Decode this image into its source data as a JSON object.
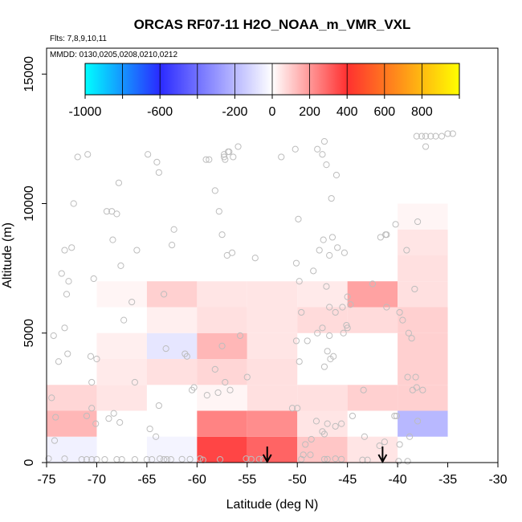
{
  "chart_data": {
    "type": "heatmap",
    "title": "ORCAS RF07-11 H2O_NOAA_m_VMR_VXL",
    "annotations": {
      "flights": "Flts: 7,8,9,10,11",
      "dates": "MMDD: 0130,0205,0208,0210,0212"
    },
    "xlabel": "Latitude (deg N)",
    "ylabel": "Altitude (m)",
    "xlim": [
      -75,
      -30
    ],
    "ylim": [
      0,
      16000
    ],
    "xticks": [
      -75,
      -70,
      -65,
      -60,
      -55,
      -50,
      -45,
      -40,
      -35,
      -30
    ],
    "yticks": [
      0,
      5000,
      10000,
      15000
    ],
    "colorbar": {
      "range": [
        -1000,
        1000
      ],
      "ticks": [
        -1000,
        -600,
        -200,
        0,
        200,
        400,
        600,
        800
      ],
      "colors": [
        "#00ffff",
        "#2a2aff",
        "#ffffff",
        "#ff3030",
        "#ffff00"
      ]
    },
    "cells": [
      {
        "x0": -75,
        "x1": -70,
        "y0": 0,
        "y1": 1000,
        "value": -40
      },
      {
        "x0": -75,
        "x1": -70,
        "y0": 1000,
        "y1": 2000,
        "value": 140
      },
      {
        "x0": -75,
        "x1": -70,
        "y0": 2000,
        "y1": 3000,
        "value": 80
      },
      {
        "x0": -70,
        "x1": -65,
        "y0": 2000,
        "y1": 3000,
        "value": 50
      },
      {
        "x0": -70,
        "x1": -65,
        "y0": 3000,
        "y1": 4000,
        "value": 40
      },
      {
        "x0": -70,
        "x1": -65,
        "y0": 4000,
        "y1": 5000,
        "value": 30
      },
      {
        "x0": -70,
        "x1": -65,
        "y0": 6000,
        "y1": 7000,
        "value": 20
      },
      {
        "x0": -65,
        "x1": -60,
        "y0": 0,
        "y1": 1000,
        "value": -30
      },
      {
        "x0": -65,
        "x1": -60,
        "y0": 3000,
        "y1": 4000,
        "value": 60
      },
      {
        "x0": -65,
        "x1": -60,
        "y0": 4000,
        "y1": 5000,
        "value": -70
      },
      {
        "x0": -65,
        "x1": -60,
        "y0": 5000,
        "y1": 6000,
        "value": 30
      },
      {
        "x0": -65,
        "x1": -60,
        "y0": 6000,
        "y1": 7000,
        "value": 90
      },
      {
        "x0": -60,
        "x1": -55,
        "y0": 0,
        "y1": 1000,
        "value": 360
      },
      {
        "x0": -60,
        "x1": -55,
        "y0": 1000,
        "y1": 2000,
        "value": 240
      },
      {
        "x0": -60,
        "x1": -55,
        "y0": 2000,
        "y1": 3000,
        "value": 20
      },
      {
        "x0": -60,
        "x1": -55,
        "y0": 3000,
        "y1": 4000,
        "value": 80
      },
      {
        "x0": -60,
        "x1": -55,
        "y0": 4000,
        "y1": 5000,
        "value": 140
      },
      {
        "x0": -60,
        "x1": -55,
        "y0": 5000,
        "y1": 6000,
        "value": 60
      },
      {
        "x0": -60,
        "x1": -55,
        "y0": 6000,
        "y1": 7000,
        "value": 50
      },
      {
        "x0": -55,
        "x1": -50,
        "y0": 0,
        "y1": 1000,
        "value": 300
      },
      {
        "x0": -55,
        "x1": -50,
        "y0": 1000,
        "y1": 2000,
        "value": 220
      },
      {
        "x0": -55,
        "x1": -50,
        "y0": 2000,
        "y1": 3000,
        "value": 60
      },
      {
        "x0": -55,
        "x1": -50,
        "y0": 3000,
        "y1": 4000,
        "value": 60
      },
      {
        "x0": -55,
        "x1": -50,
        "y0": 4000,
        "y1": 5000,
        "value": 50
      },
      {
        "x0": -55,
        "x1": -50,
        "y0": 5000,
        "y1": 6000,
        "value": 50
      },
      {
        "x0": -55,
        "x1": -50,
        "y0": 6000,
        "y1": 7000,
        "value": 50
      },
      {
        "x0": -50,
        "x1": -45,
        "y0": 0,
        "y1": 1000,
        "value": 110
      },
      {
        "x0": -50,
        "x1": -45,
        "y0": 1000,
        "y1": 2000,
        "value": 50
      },
      {
        "x0": -50,
        "x1": -45,
        "y0": 2000,
        "y1": 3000,
        "value": 60
      },
      {
        "x0": -50,
        "x1": -45,
        "y0": 5000,
        "y1": 6000,
        "value": 70
      },
      {
        "x0": -50,
        "x1": -45,
        "y0": 6000,
        "y1": 7000,
        "value": 40
      },
      {
        "x0": -45,
        "x1": -40,
        "y0": 0,
        "y1": 1000,
        "value": 50
      },
      {
        "x0": -45,
        "x1": -40,
        "y0": 2000,
        "y1": 3000,
        "value": 90
      },
      {
        "x0": -45,
        "x1": -40,
        "y0": 5000,
        "y1": 6000,
        "value": 70
      },
      {
        "x0": -45,
        "x1": -40,
        "y0": 6000,
        "y1": 7000,
        "value": 180
      },
      {
        "x0": -40,
        "x1": -35,
        "y0": 1000,
        "y1": 2000,
        "value": -200
      },
      {
        "x0": -40,
        "x1": -35,
        "y0": 2000,
        "y1": 3000,
        "value": 90
      },
      {
        "x0": -40,
        "x1": -35,
        "y0": 3000,
        "y1": 4000,
        "value": 90
      },
      {
        "x0": -40,
        "x1": -35,
        "y0": 4000,
        "y1": 5000,
        "value": 90
      },
      {
        "x0": -40,
        "x1": -35,
        "y0": 5000,
        "y1": 6000,
        "value": 90
      },
      {
        "x0": -40,
        "x1": -35,
        "y0": 6000,
        "y1": 7000,
        "value": 60
      },
      {
        "x0": -40,
        "x1": -35,
        "y0": 7000,
        "y1": 8000,
        "value": 60
      },
      {
        "x0": -40,
        "x1": -35,
        "y0": 8000,
        "y1": 9000,
        "value": 50
      },
      {
        "x0": -40,
        "x1": -35,
        "y0": 9000,
        "y1": 10000,
        "value": 20
      }
    ],
    "arrows": [
      {
        "x": -53
      },
      {
        "x": -41.5
      }
    ],
    "points": [
      [
        -74.5,
        2500
      ],
      [
        -74.1,
        1750
      ],
      [
        -74.2,
        850
      ],
      [
        -74.8,
        150
      ],
      [
        -73.2,
        150
      ],
      [
        -71.5,
        120
      ],
      [
        -71.0,
        120
      ],
      [
        -70.5,
        120
      ],
      [
        -70.0,
        120
      ],
      [
        -69.2,
        120
      ],
      [
        -68.0,
        120
      ],
      [
        -67.5,
        120
      ],
      [
        -66.2,
        120
      ],
      [
        -65.0,
        120
      ],
      [
        -64.5,
        120
      ],
      [
        -63.3,
        120
      ],
      [
        -63.0,
        120
      ],
      [
        -62.6,
        120
      ],
      [
        -61.5,
        130
      ],
      [
        -60.7,
        130
      ],
      [
        -74.3,
        4900
      ],
      [
        -73.8,
        3900
      ],
      [
        -73.5,
        7300
      ],
      [
        -73.2,
        8200
      ],
      [
        -72.5,
        8300
      ],
      [
        -71.9,
        11800
      ],
      [
        -70.9,
        11900
      ],
      [
        -72.8,
        7000
      ],
      [
        -73.0,
        6500
      ],
      [
        -73.2,
        5200
      ],
      [
        -72.9,
        4200
      ],
      [
        -72.3,
        10000
      ],
      [
        -70.3,
        7100
      ],
      [
        -70.6,
        4100
      ],
      [
        -70.0,
        4000
      ],
      [
        -70.5,
        3100
      ],
      [
        -70.5,
        2100
      ],
      [
        -71.0,
        1800
      ],
      [
        -70.1,
        1500
      ],
      [
        -68.8,
        1700
      ],
      [
        -68.3,
        1900
      ],
      [
        -67.7,
        1550
      ],
      [
        -69.0,
        9700
      ],
      [
        -68.5,
        9700
      ],
      [
        -68.0,
        9600
      ],
      [
        -67.8,
        10800
      ],
      [
        -67.6,
        7600
      ],
      [
        -68.4,
        8600
      ],
      [
        -67.3,
        5500
      ],
      [
        -66.2,
        3100
      ],
      [
        -66.5,
        6200
      ],
      [
        -66.0,
        8200
      ],
      [
        -64.9,
        11900
      ],
      [
        -63.8,
        11200
      ],
      [
        -64.0,
        11600
      ],
      [
        -62.3,
        9000
      ],
      [
        -62.5,
        8400
      ],
      [
        -63.3,
        6500
      ],
      [
        -63.1,
        4400
      ],
      [
        -63.8,
        2200
      ],
      [
        -64.1,
        1000
      ],
      [
        -64.7,
        1300
      ],
      [
        -63.7,
        150
      ],
      [
        -61.2,
        4200
      ],
      [
        -61.0,
        4100
      ],
      [
        -60.5,
        2800
      ],
      [
        -60.3,
        2900
      ],
      [
        -59.1,
        11700
      ],
      [
        -58.8,
        11700
      ],
      [
        -57.2,
        11700
      ],
      [
        -58.2,
        10500
      ],
      [
        -57.8,
        9700
      ],
      [
        -57.5,
        8800
      ],
      [
        -57.0,
        8000
      ],
      [
        -56.5,
        8100
      ],
      [
        -57.3,
        11900
      ],
      [
        -56.8,
        12000
      ],
      [
        -55.9,
        12200
      ],
      [
        -56.9,
        12000
      ],
      [
        -57.3,
        11800
      ],
      [
        -56.4,
        11800
      ],
      [
        -54.2,
        7900
      ],
      [
        -55.7,
        4900
      ],
      [
        -57.5,
        4500
      ],
      [
        -58.2,
        3600
      ],
      [
        -57.2,
        3100
      ],
      [
        -55.0,
        3300
      ],
      [
        -56.7,
        2800
      ],
      [
        -57.9,
        2700
      ],
      [
        -59.0,
        2600
      ],
      [
        -59.7,
        150
      ],
      [
        -59.4,
        100
      ],
      [
        -57.7,
        120
      ],
      [
        -55.1,
        150
      ],
      [
        -54.6,
        130
      ],
      [
        -53.8,
        130
      ],
      [
        -53.4,
        120
      ],
      [
        -51.6,
        11800
      ],
      [
        -50.2,
        12100
      ],
      [
        -48.0,
        12100
      ],
      [
        -47.3,
        12400
      ],
      [
        -46.6,
        10200
      ],
      [
        -46.1,
        11100
      ],
      [
        -47.5,
        11900
      ],
      [
        -47.1,
        11500
      ],
      [
        -49.9,
        9400
      ],
      [
        -47.4,
        8600
      ],
      [
        -46.5,
        8700
      ],
      [
        -47.8,
        8200
      ],
      [
        -46.8,
        8000
      ],
      [
        -46.0,
        8300
      ],
      [
        -45.3,
        8100
      ],
      [
        -48.4,
        7400
      ],
      [
        -49.8,
        7000
      ],
      [
        -50.1,
        7700
      ],
      [
        -47.1,
        6800
      ],
      [
        -45.0,
        6400
      ],
      [
        -45.5,
        6000
      ],
      [
        -46.8,
        6000
      ],
      [
        -46.2,
        5800
      ],
      [
        -49.6,
        5800
      ],
      [
        -47.5,
        5200
      ],
      [
        -46.8,
        4900
      ],
      [
        -44.7,
        6100
      ],
      [
        -45.0,
        5200
      ],
      [
        -48.0,
        5000
      ],
      [
        -47.0,
        4300
      ],
      [
        -47.3,
        3700
      ],
      [
        -46.4,
        4100
      ],
      [
        -46.7,
        4000
      ],
      [
        -45.1,
        5300
      ],
      [
        -45.4,
        5000
      ],
      [
        -49.0,
        4700
      ],
      [
        -49.8,
        3900
      ],
      [
        -50.1,
        4700
      ],
      [
        -50.5,
        2100
      ],
      [
        -50.0,
        2100
      ],
      [
        -48.1,
        1600
      ],
      [
        -47.0,
        1500
      ],
      [
        -46.2,
        1400
      ],
      [
        -45.6,
        1500
      ],
      [
        -47.5,
        1200
      ],
      [
        -47.3,
        1100
      ],
      [
        -48.6,
        900
      ],
      [
        -49.2,
        700
      ],
      [
        -49.4,
        300
      ],
      [
        -49.6,
        130
      ],
      [
        -48.7,
        300
      ],
      [
        -47.3,
        130
      ],
      [
        -47.0,
        130
      ],
      [
        -46.2,
        150
      ],
      [
        -45.6,
        130
      ],
      [
        -43.3,
        1000
      ],
      [
        -44.5,
        1800
      ],
      [
        -43.4,
        2800
      ],
      [
        -41.2,
        8800
      ],
      [
        -41.1,
        8800
      ],
      [
        -41.7,
        8700
      ],
      [
        -40.2,
        9200
      ],
      [
        -39.1,
        8200
      ],
      [
        -42.5,
        6900
      ],
      [
        -41.1,
        6000
      ],
      [
        -39.8,
        5800
      ],
      [
        -39.5,
        5500
      ],
      [
        -38.9,
        5000
      ],
      [
        -39.0,
        3300
      ],
      [
        -38.2,
        3300
      ],
      [
        -38.5,
        2800
      ],
      [
        -37.5,
        2800
      ],
      [
        -38.0,
        1600
      ],
      [
        -38.8,
        1000
      ],
      [
        -39.8,
        700
      ],
      [
        -40.3,
        1800
      ],
      [
        -41.3,
        800
      ],
      [
        -41.8,
        650
      ],
      [
        -43.0,
        100
      ],
      [
        -43.5,
        100
      ],
      [
        -39.9,
        50
      ],
      [
        -39.0,
        50
      ],
      [
        -38.1,
        12600
      ],
      [
        -37.6,
        12600
      ],
      [
        -37.2,
        12600
      ],
      [
        -36.7,
        12600
      ],
      [
        -36.2,
        12600
      ],
      [
        -35.6,
        12600
      ],
      [
        -35.0,
        12700
      ],
      [
        -34.5,
        12700
      ],
      [
        -37.2,
        12200
      ],
      [
        -38.0,
        9300
      ],
      [
        -38.3,
        6700
      ],
      [
        -38.6,
        4800
      ],
      [
        -38.1,
        2900
      ],
      [
        -40.1,
        1800
      ]
    ]
  }
}
